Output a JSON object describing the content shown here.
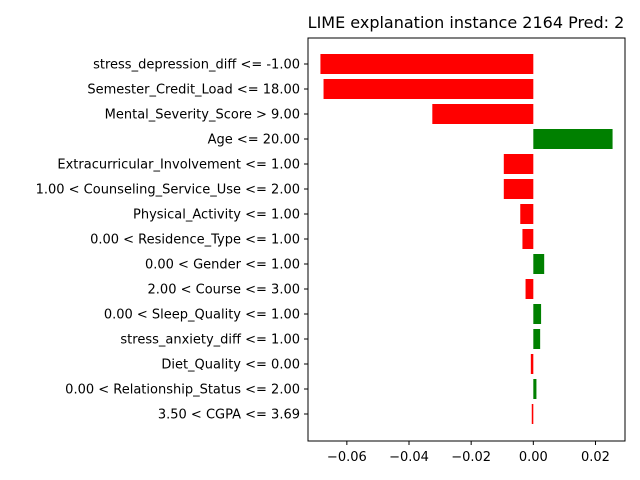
{
  "chart_data": {
    "type": "bar",
    "orientation": "horizontal",
    "title": "LIME explanation instance 2164 Pred: 2",
    "xlabel": "",
    "ylabel": "",
    "xlim": [
      -0.0725,
      0.0295
    ],
    "xticks": [
      -0.06,
      -0.04,
      -0.02,
      0.0,
      0.02
    ],
    "xtick_labels": [
      "−0.06",
      "−0.04",
      "−0.02",
      "0.00",
      "0.02"
    ],
    "grid": false,
    "positive_color": "#008000",
    "negative_color": "#ff0000",
    "categories": [
      "stress_depression_diff <= -1.00",
      "Semester_Credit_Load <= 18.00",
      "Mental_Severity_Score > 9.00",
      "Age <= 20.00",
      "Extracurricular_Involvement <= 1.00",
      "1.00 < Counseling_Service_Use <= 2.00",
      "Physical_Activity <= 1.00",
      "0.00 < Residence_Type <= 1.00",
      "0.00 < Gender <= 1.00",
      "2.00 < Course <= 3.00",
      "0.00 < Sleep_Quality <= 1.00",
      "stress_anxiety_diff <= 1.00",
      "Diet_Quality <= 0.00",
      "0.00 < Relationship_Status <= 2.00",
      "3.50 < CGPA <= 3.69"
    ],
    "values": [
      -0.0685,
      -0.0675,
      -0.0325,
      0.0255,
      -0.0095,
      -0.0095,
      -0.0042,
      -0.0035,
      0.0035,
      -0.0025,
      0.0025,
      0.0022,
      -0.0008,
      0.001,
      -0.0005
    ]
  }
}
